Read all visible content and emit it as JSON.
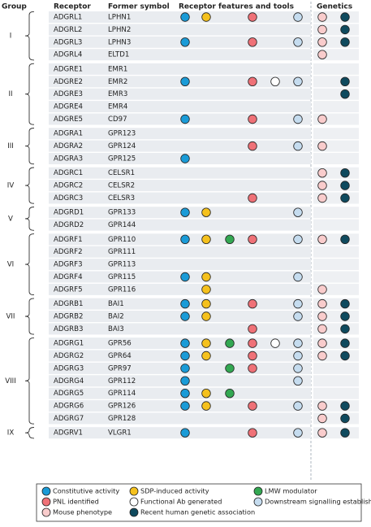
{
  "header": {
    "group": "Group",
    "receptor": "Receptor",
    "former_symbol": "Former symbol",
    "features": "Receptor features and tools",
    "genetics": "Genetics"
  },
  "legend": [
    {
      "label": "Constitutive activity",
      "color": "#1a9bd7"
    },
    {
      "label": "SDP-induced activity",
      "color": "#f5c11d"
    },
    {
      "label": "LMW modulator",
      "color": "#33a852"
    },
    {
      "label": "PNL identified",
      "color": "#ef7177"
    },
    {
      "label": "Functional Ab generated",
      "color": "#ffffff"
    },
    {
      "label": "Downstream signalling established",
      "color": "#c5dcef"
    },
    {
      "label": "Mouse phenotype",
      "color": "#f9cccc"
    },
    {
      "label": "Recent human genetic association",
      "color": "#0f4a5e"
    }
  ],
  "groups": [
    {
      "label": "I",
      "rows": [
        {
          "receptor": "ADGRL1",
          "former_symbol": "LPHN1",
          "marks": [
            true,
            true,
            false,
            true,
            false,
            true,
            true,
            true
          ]
        },
        {
          "receptor": "ADGRL2",
          "former_symbol": "LPHN2",
          "marks": [
            false,
            false,
            false,
            false,
            false,
            false,
            true,
            true
          ]
        },
        {
          "receptor": "ADGRL3",
          "former_symbol": "LPHN3",
          "marks": [
            true,
            false,
            false,
            true,
            false,
            true,
            true,
            true
          ]
        },
        {
          "receptor": "ADGRL4",
          "former_symbol": "ELTD1",
          "marks": [
            false,
            false,
            false,
            false,
            false,
            false,
            true,
            false
          ]
        }
      ]
    },
    {
      "label": "II",
      "rows": [
        {
          "receptor": "ADGRE1",
          "former_symbol": "EMR1",
          "marks": [
            false,
            false,
            false,
            false,
            false,
            false,
            false,
            false
          ]
        },
        {
          "receptor": "ADGRE2",
          "former_symbol": "EMR2",
          "marks": [
            true,
            false,
            false,
            true,
            true,
            true,
            false,
            true
          ]
        },
        {
          "receptor": "ADGRE3",
          "former_symbol": "EMR3",
          "marks": [
            false,
            false,
            false,
            false,
            false,
            false,
            false,
            true
          ]
        },
        {
          "receptor": "ADGRE4",
          "former_symbol": "EMR4",
          "marks": [
            false,
            false,
            false,
            false,
            false,
            false,
            false,
            false
          ]
        },
        {
          "receptor": "ADGRE5",
          "former_symbol": "CD97",
          "marks": [
            true,
            false,
            false,
            true,
            false,
            true,
            true,
            false
          ]
        }
      ]
    },
    {
      "label": "III",
      "rows": [
        {
          "receptor": "ADGRA1",
          "former_symbol": "GPR123",
          "marks": [
            false,
            false,
            false,
            false,
            false,
            false,
            false,
            false
          ]
        },
        {
          "receptor": "ADGRA2",
          "former_symbol": "GPR124",
          "marks": [
            false,
            false,
            false,
            true,
            false,
            true,
            true,
            false
          ]
        },
        {
          "receptor": "ADGRA3",
          "former_symbol": "GPR125",
          "marks": [
            true,
            false,
            false,
            false,
            false,
            false,
            false,
            false
          ]
        }
      ]
    },
    {
      "label": "IV",
      "rows": [
        {
          "receptor": "ADGRC1",
          "former_symbol": "CELSR1",
          "marks": [
            false,
            false,
            false,
            false,
            false,
            false,
            true,
            true
          ]
        },
        {
          "receptor": "ADGRC2",
          "former_symbol": "CELSR2",
          "marks": [
            false,
            false,
            false,
            false,
            false,
            false,
            true,
            true
          ]
        },
        {
          "receptor": "ADGRC3",
          "former_symbol": "CELSR3",
          "marks": [
            false,
            false,
            false,
            true,
            false,
            false,
            true,
            true
          ]
        }
      ]
    },
    {
      "label": "V",
      "rows": [
        {
          "receptor": "ADGRD1",
          "former_symbol": "GPR133",
          "marks": [
            true,
            true,
            false,
            false,
            false,
            true,
            false,
            false
          ]
        },
        {
          "receptor": "ADGRD2",
          "former_symbol": "GPR144",
          "marks": [
            false,
            false,
            false,
            false,
            false,
            false,
            false,
            false
          ]
        }
      ]
    },
    {
      "label": "VI",
      "rows": [
        {
          "receptor": "ADGRF1",
          "former_symbol": "GPR110",
          "marks": [
            true,
            true,
            true,
            true,
            false,
            true,
            true,
            true
          ]
        },
        {
          "receptor": "ADGRF2",
          "former_symbol": "GPR111",
          "marks": [
            false,
            false,
            false,
            false,
            false,
            false,
            false,
            false
          ]
        },
        {
          "receptor": "ADGRF3",
          "former_symbol": "GPR113",
          "marks": [
            false,
            false,
            false,
            false,
            false,
            false,
            false,
            false
          ]
        },
        {
          "receptor": "ADGRF4",
          "former_symbol": "GPR115",
          "marks": [
            true,
            true,
            false,
            false,
            false,
            true,
            false,
            false
          ]
        },
        {
          "receptor": "ADGRF5",
          "former_symbol": "GPR116",
          "marks": [
            false,
            true,
            false,
            false,
            false,
            false,
            true,
            false
          ]
        }
      ]
    },
    {
      "label": "VII",
      "rows": [
        {
          "receptor": "ADGRB1",
          "former_symbol": "BAI1",
          "marks": [
            true,
            true,
            false,
            true,
            false,
            true,
            true,
            true
          ]
        },
        {
          "receptor": "ADGRB2",
          "former_symbol": "BAI2",
          "marks": [
            true,
            true,
            false,
            false,
            false,
            true,
            true,
            true
          ]
        },
        {
          "receptor": "ADGRB3",
          "former_symbol": "BAI3",
          "marks": [
            false,
            false,
            false,
            true,
            false,
            false,
            true,
            true
          ]
        }
      ]
    },
    {
      "label": "VIII",
      "rows": [
        {
          "receptor": "ADGRG1",
          "former_symbol": "GPR56",
          "marks": [
            true,
            true,
            true,
            true,
            true,
            true,
            true,
            true
          ]
        },
        {
          "receptor": "ADGRG2",
          "former_symbol": "GPR64",
          "marks": [
            true,
            true,
            false,
            true,
            false,
            true,
            true,
            true
          ]
        },
        {
          "receptor": "ADGRG3",
          "former_symbol": "GPR97",
          "marks": [
            true,
            false,
            true,
            true,
            false,
            true,
            false,
            false
          ]
        },
        {
          "receptor": "ADGRG4",
          "former_symbol": "GPR112",
          "marks": [
            true,
            false,
            false,
            false,
            false,
            true,
            false,
            false
          ]
        },
        {
          "receptor": "ADGRG5",
          "former_symbol": "GPR114",
          "marks": [
            true,
            true,
            true,
            false,
            false,
            false,
            false,
            false
          ]
        },
        {
          "receptor": "ADGRG6",
          "former_symbol": "GPR126",
          "marks": [
            true,
            true,
            false,
            true,
            false,
            true,
            true,
            true
          ]
        },
        {
          "receptor": "ADGRG7",
          "former_symbol": "GPR128",
          "marks": [
            false,
            false,
            false,
            false,
            false,
            false,
            true,
            true
          ]
        }
      ]
    },
    {
      "label": "IX",
      "rows": [
        {
          "receptor": "ADGRV1",
          "former_symbol": "VLGR1",
          "marks": [
            true,
            false,
            false,
            true,
            false,
            true,
            true,
            true
          ]
        }
      ]
    }
  ]
}
